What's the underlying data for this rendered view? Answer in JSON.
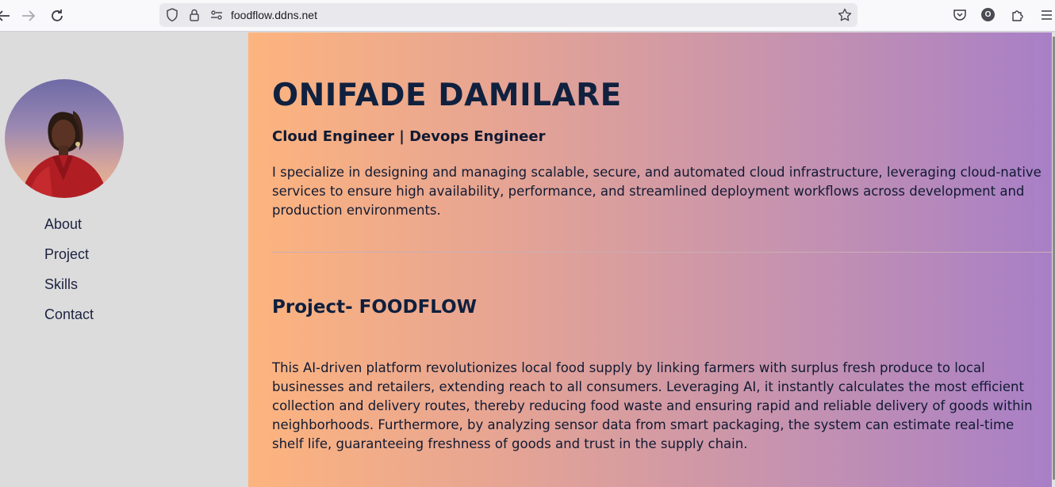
{
  "browser": {
    "url": "foodflow.ddns.net",
    "profile_initial": "O",
    "icons": [
      "back-arrow-icon",
      "forward-arrow-icon",
      "reload-icon",
      "shield-icon",
      "lock-icon",
      "permissions-icon",
      "bookmark-star-icon",
      "pocket-icon",
      "extensions-icon",
      "menu-icon"
    ]
  },
  "sidebar": {
    "nav": [
      {
        "label": "About"
      },
      {
        "label": "Project"
      },
      {
        "label": "Skills"
      },
      {
        "label": "Contact"
      }
    ]
  },
  "hero": {
    "name": "ONIFADE DAMILARE",
    "role": "Cloud Engineer | Devops Engineer",
    "summary": "I specialize in designing and managing scalable, secure, and automated cloud infrastructure, leveraging cloud-native services to ensure high availability, performance, and streamlined deployment workflows across development and production environments."
  },
  "project": {
    "title": "Project- FOODFLOW",
    "description": "This AI-driven platform revolutionizes local food supply by linking farmers with surplus fresh produce to local businesses and retailers, extending reach to all consumers. Leveraging AI, it instantly calculates the most efficient collection and delivery routes, thereby reducing food waste and ensuring rapid and reliable delivery of goods within neighborhoods. Furthermore, by analyzing sensor data from smart packaging, the system can estimate real-time shelf life, guaranteeing freshness of goods and trust in the supply chain."
  },
  "colors": {
    "gradient_start": "#fdb47e",
    "gradient_end": "#a87fc7",
    "sidebar_bg": "#dcdcdc",
    "text_dark": "#10213f"
  }
}
